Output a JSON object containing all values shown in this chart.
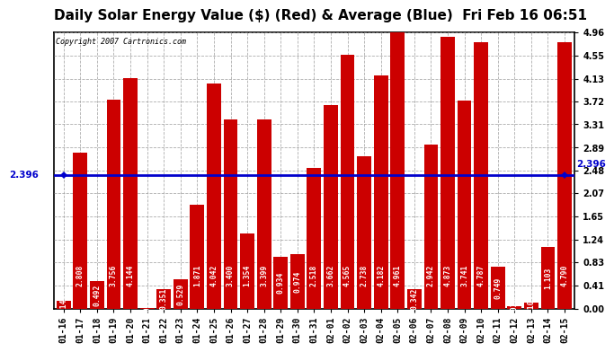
{
  "title": "Daily Solar Energy Value ($) (Red) & Average (Blue)  Fri Feb 16 06:51",
  "copyright": "Copyright 2007 Cartronics.com",
  "average": 2.396,
  "bar_color": "#cc0000",
  "avg_line_color": "#0000cc",
  "background_color": "#ffffff",
  "plot_bg_color": "#ffffff",
  "grid_color": "#999999",
  "categories": [
    "01-16",
    "01-17",
    "01-18",
    "01-19",
    "01-20",
    "01-21",
    "01-22",
    "01-23",
    "01-24",
    "01-25",
    "01-26",
    "01-27",
    "01-28",
    "01-29",
    "01-30",
    "01-31",
    "02-01",
    "02-02",
    "02-03",
    "02-04",
    "02-05",
    "02-06",
    "02-07",
    "02-08",
    "02-09",
    "02-10",
    "02-11",
    "02-12",
    "02-13",
    "02-14",
    "02-15"
  ],
  "values": [
    0.143,
    2.808,
    0.492,
    3.756,
    4.144,
    0.014,
    0.351,
    0.529,
    1.871,
    4.042,
    3.4,
    1.354,
    3.399,
    0.934,
    0.974,
    2.518,
    3.662,
    4.565,
    2.738,
    4.182,
    4.961,
    0.342,
    2.942,
    4.873,
    3.741,
    4.787,
    0.749,
    0.036,
    0.105,
    1.103,
    4.79
  ],
  "yticks": [
    0.0,
    0.41,
    0.83,
    1.24,
    1.65,
    2.07,
    2.48,
    2.89,
    3.31,
    3.72,
    4.13,
    4.55,
    4.96
  ],
  "ylim": [
    0,
    4.96
  ],
  "title_fontsize": 11,
  "tick_fontsize": 7,
  "bar_value_fontsize": 5.8,
  "avg_label_fontsize": 7.5
}
